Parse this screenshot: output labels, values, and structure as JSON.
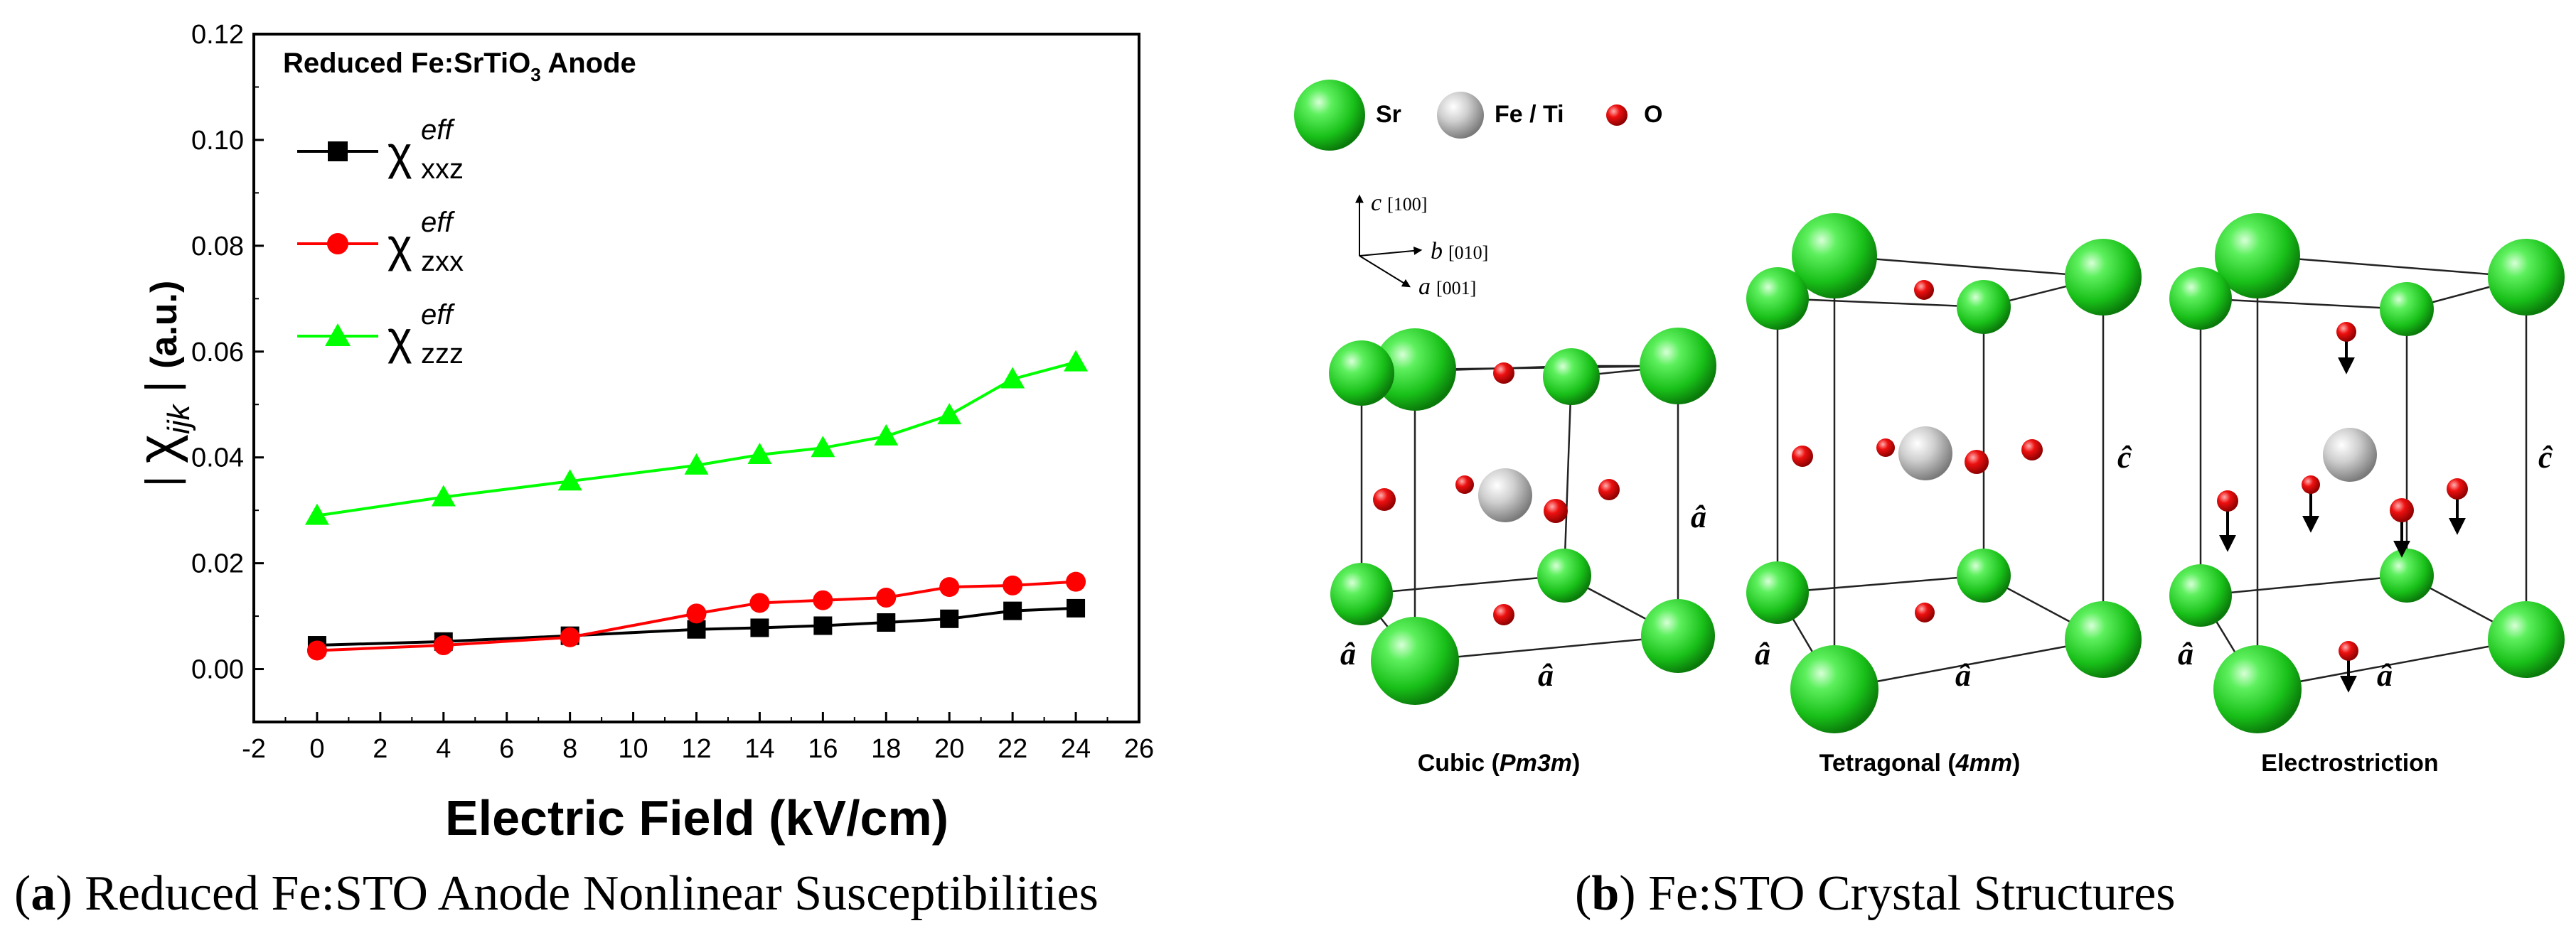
{
  "chart_data": {
    "type": "line",
    "title": "Reduced Fe:SrTiO3 Anode",
    "title_parts": {
      "main": "Reduced Fe:SrTiO",
      "sub": "3",
      "tail": " Anode"
    },
    "xlabel": "Electric Field (kV/cm)",
    "ylabel": {
      "bar_left": "|",
      "chi": "χ",
      "sub": "ijk",
      "bar_right": "|",
      "unit": "(a.u.)"
    },
    "xlim": [
      -2,
      26
    ],
    "ylim": [
      -0.01,
      0.12
    ],
    "x_ticks": [
      -2,
      0,
      2,
      4,
      6,
      8,
      10,
      12,
      14,
      16,
      18,
      20,
      22,
      24,
      26
    ],
    "y_ticks": [
      "0.00",
      "0.02",
      "0.04",
      "0.06",
      "0.08",
      "0.10",
      "0.12"
    ],
    "y_tick_values": [
      0,
      0.02,
      0.04,
      0.06,
      0.08,
      0.1,
      0.12
    ],
    "x": [
      0,
      4,
      8,
      12,
      14,
      16,
      18,
      20,
      22,
      24
    ],
    "series": [
      {
        "name": "χ_xxz^eff",
        "chi": "χ",
        "sup": "eff",
        "sub": "xxz",
        "color": "#000000",
        "marker": "square",
        "values": [
          0.0045,
          0.0052,
          0.0063,
          0.0075,
          0.0078,
          0.0082,
          0.0088,
          0.0095,
          0.011,
          0.0115
        ]
      },
      {
        "name": "χ_zxx^eff",
        "chi": "χ",
        "sup": "eff",
        "sub": "zxx",
        "color": "#ff0000",
        "marker": "circle",
        "values": [
          0.0035,
          0.0045,
          0.006,
          0.0105,
          0.0125,
          0.013,
          0.0135,
          0.0155,
          0.0158,
          0.0165
        ]
      },
      {
        "name": "χ_zzz^eff",
        "chi": "χ",
        "sup": "eff",
        "sub": "zzz",
        "color": "#00ff00",
        "marker": "triangle",
        "values": [
          0.029,
          0.0325,
          0.0355,
          0.0385,
          0.0405,
          0.0418,
          0.044,
          0.048,
          0.0548,
          0.058
        ]
      }
    ]
  },
  "captions": {
    "a": {
      "label": "a",
      "text": " Reduced Fe:STO Anode Nonlinear Susceptibilities"
    },
    "b": {
      "label": "b",
      "text": " Fe:STO Crystal Structures"
    }
  },
  "structures": {
    "legend": [
      {
        "label": "Sr",
        "color": "#22cc22"
      },
      {
        "label": "Fe / Ti",
        "color": "#cfcfcf"
      },
      {
        "label": "O",
        "color": "#e00000"
      }
    ],
    "axes": {
      "c": {
        "letter": "c",
        "index": "[100]"
      },
      "b": {
        "letter": "b",
        "index": "[010]"
      },
      "a": {
        "letter": "a",
        "index": "[001]"
      }
    },
    "hat_a": "â",
    "hat_c": "ĉ",
    "cubic_label": {
      "pre": "Cubic (",
      "italic": "Pm3m",
      "post": ")"
    },
    "tetragonal_label": {
      "pre": "Tetragonal (",
      "italic": "4mm",
      "post": ")"
    },
    "electrostriction_label": "Electrostriction"
  }
}
